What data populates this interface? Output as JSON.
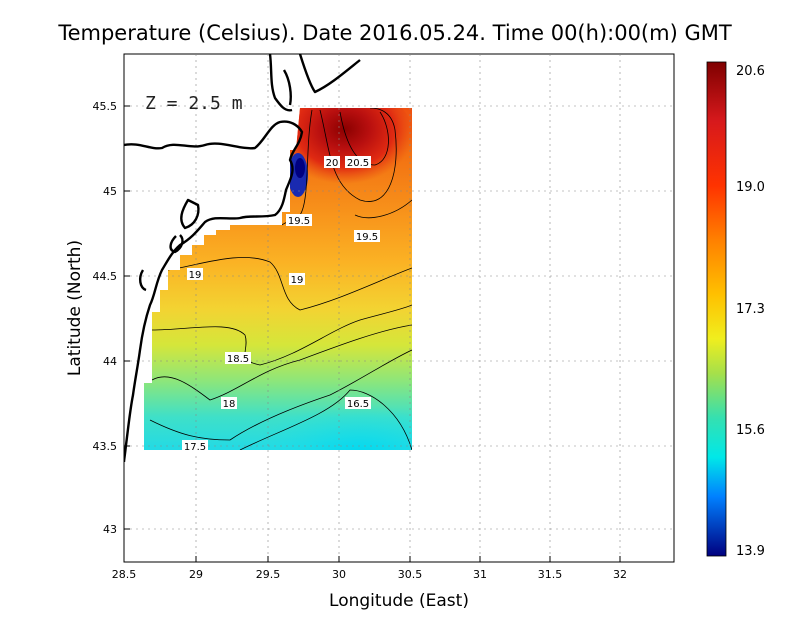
{
  "title": "Temperature (Celsius). Date 2016.05.24. Time 00(h):00(m)  GMT",
  "depth_label": "Z  =  2.5  m",
  "x_axis": {
    "label": "Longitude (East)",
    "ticks": [
      "28.5",
      "29",
      "29.5",
      "30",
      "30.5",
      "31",
      "31.5",
      "32"
    ],
    "range": [
      28.5,
      32.4
    ]
  },
  "y_axis": {
    "label": "Latitude (North)",
    "ticks": [
      "43",
      "43.5",
      "44",
      "44.5",
      "45",
      "45.5"
    ],
    "range": [
      42.8,
      45.8
    ]
  },
  "colorbar": {
    "ticks": [
      "20.6",
      "19.0",
      "17.3",
      "15.6",
      "13.9"
    ],
    "min": 13.9,
    "max": 20.6
  },
  "chart_data": {
    "type": "heatmap",
    "title": "Temperature (Celsius). Date 2016.05.24. Time 00(h):00(m)  GMT",
    "xlabel": "Longitude (East)",
    "ylabel": "Latitude (North)",
    "xlim": [
      28.5,
      32.4
    ],
    "ylim": [
      42.8,
      45.8
    ],
    "grid": true,
    "colorbar": {
      "min": 13.9,
      "max": 20.6,
      "ticks": [
        20.6,
        19.0,
        17.3,
        15.6,
        13.9
      ]
    },
    "data_extent": {
      "lon": [
        28.62,
        30.55
      ],
      "lat": [
        43.5,
        45.5
      ]
    },
    "contour_labels": [
      {
        "text": "20",
        "lon": 29.96,
        "lat": 45.17
      },
      {
        "text": "20.5",
        "lon": 30.14,
        "lat": 45.17
      },
      {
        "text": "19.5",
        "lon": 29.72,
        "lat": 44.8
      },
      {
        "text": "19.5",
        "lon": 30.2,
        "lat": 44.72
      },
      {
        "text": "19",
        "lon": 29.0,
        "lat": 44.52
      },
      {
        "text": "19",
        "lon": 29.72,
        "lat": 44.49
      },
      {
        "text": "18.5",
        "lon": 29.3,
        "lat": 44.02
      },
      {
        "text": "18",
        "lon": 29.25,
        "lat": 43.75
      },
      {
        "text": "16.5",
        "lon": 30.14,
        "lat": 43.75
      },
      {
        "text": "17.5",
        "lon": 29.0,
        "lat": 43.5
      }
    ]
  }
}
